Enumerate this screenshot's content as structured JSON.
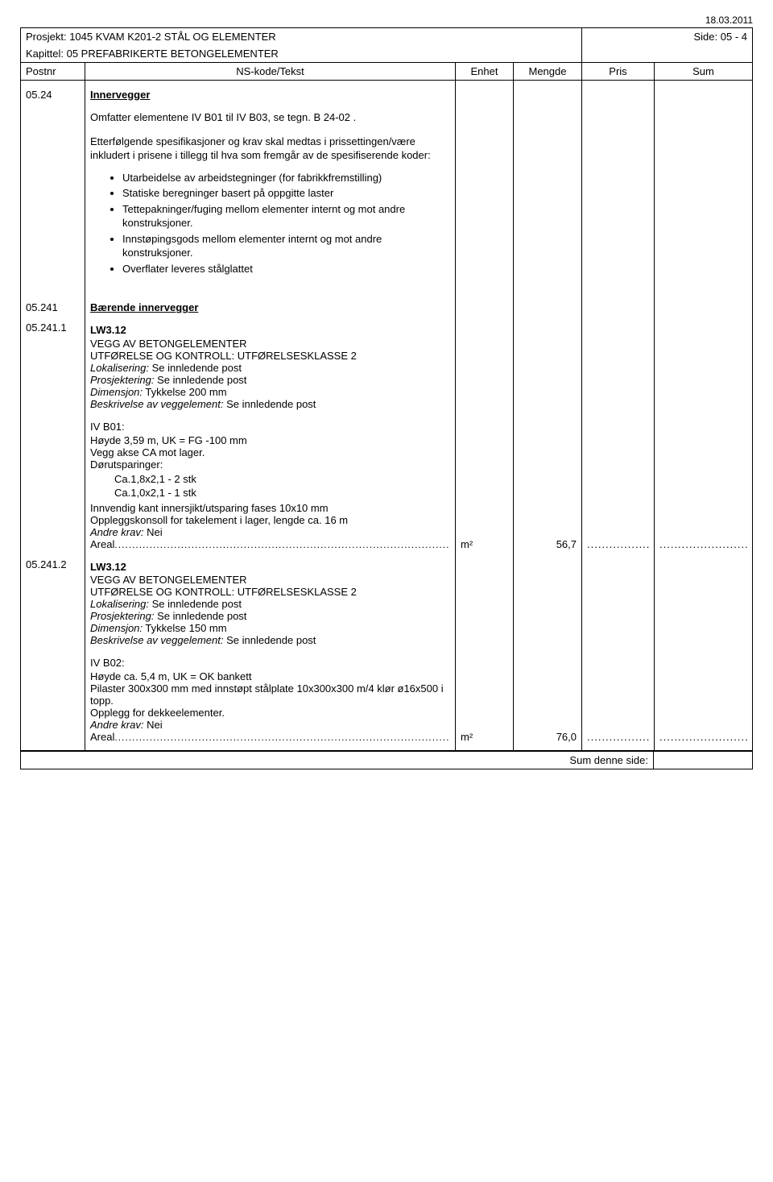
{
  "date": "18.03.2011",
  "header": {
    "prosjekt_label": "Prosjekt:",
    "prosjekt_value": "1045 KVAM K201-2 STÅL OG ELEMENTER",
    "side_label": "Side:",
    "side_value": "05 - 4",
    "kapittel_label": "Kapittel:",
    "kapittel_value": "05 PREFABRIKERTE BETONGELEMENTER",
    "columns": {
      "postnr": "Postnr",
      "tekst": "NS-kode/Tekst",
      "enhet": "Enhet",
      "mengde": "Mengde",
      "pris": "Pris",
      "sum": "Sum"
    }
  },
  "rows": [
    {
      "postnr": "05.24",
      "title": "Innervegger",
      "paras": [
        "Omfatter elementene IV B01 til IV B03, se tegn. B 24-02 .",
        "Etterfølgende spesifikasjoner og krav skal medtas i prissettingen/være inkludert i prisene i tillegg til hva som fremgår av de spesifiserende koder:"
      ],
      "bullets": [
        "Utarbeidelse av arbeidstegninger (for fabrikkfremstilling)",
        "Statiske beregninger basert på oppgitte laster",
        "Tettepakninger/fuging mellom elementer internt og mot andre konstruksjoner.",
        "Innstøpingsgods mellom elementer internt og mot andre konstruksjoner.",
        "Overflater leveres stålglattet"
      ]
    },
    {
      "postnr": "05.241",
      "title": "Bærende innervegger"
    },
    {
      "postnr": "05.241.1",
      "code": "LW3.12",
      "heading": "VEGG AV BETONGELEMENTER",
      "utforelse": "UTFØRELSE OG KONTROLL: UTFØRELSESKLASSE 2",
      "lokalisering_label": "Lokalisering:",
      "lokalisering_value": "Se innledende post",
      "prosjektering_label": "Prosjektering:",
      "prosjektering_value": "Se innledende post",
      "dimensjon_label": "Dimensjon:",
      "dimensjon_value": "Tykkelse 200 mm",
      "beskrivelse_label": "Beskrivelse av veggelement:",
      "beskrivelse_value": "Se innledende post",
      "detail_heading": "IV B01:",
      "detail_lines": [
        "Høyde 3,59 m, UK = FG -100 mm",
        "Vegg akse CA mot lager.",
        "Dørutsparinger:"
      ],
      "detail_sublist": [
        "Ca.1,8x2,1  -  2 stk",
        "Ca.1,0x2,1  -  1 stk"
      ],
      "detail_lines2": [
        "Innvendig kant innersjikt/utsparing fases 10x10 mm",
        "Oppleggskonsoll for takelement i lager, lengde ca. 16 m"
      ],
      "andre_krav_label": "Andre krav:",
      "andre_krav_value": "Nei",
      "areal_label": "Areal",
      "enhet": "m²",
      "mengde": "56,7"
    },
    {
      "postnr": "05.241.2",
      "code": "LW3.12",
      "heading": "VEGG AV BETONGELEMENTER",
      "utforelse": "UTFØRELSE OG KONTROLL: UTFØRELSESKLASSE 2",
      "lokalisering_label": "Lokalisering:",
      "lokalisering_value": "Se innledende post",
      "prosjektering_label": "Prosjektering:",
      "prosjektering_value": "Se innledende post",
      "dimensjon_label": "Dimensjon:",
      "dimensjon_value": "Tykkelse 150 mm",
      "beskrivelse_label": "Beskrivelse av veggelement:",
      "beskrivelse_value": "Se innledende post",
      "detail_heading": "IV B02:",
      "detail_lines": [
        "Høyde ca. 5,4 m, UK = OK bankett",
        "Pilaster 300x300 mm med innstøpt stålplate 10x300x300 m/4 klør ø16x500 i topp.",
        "Opplegg for dekkeelementer."
      ],
      "andre_krav_label": "Andre krav:",
      "andre_krav_value": "Nei",
      "areal_label": "Areal",
      "enhet": "m²",
      "mengde": "76,0"
    }
  ],
  "footer": {
    "sum_label": "Sum denne side:"
  }
}
